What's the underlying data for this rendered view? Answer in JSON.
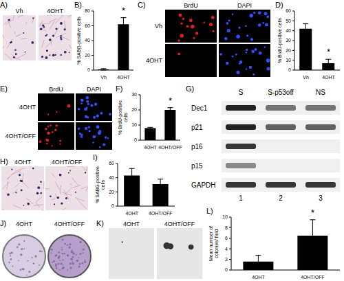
{
  "panels": [
    {
      "title": "A)",
      "captions": [
        "Vh",
        "4OHT"
      ]
    },
    {
      "title": "C)",
      "columns": [
        "BrdU",
        "DAPI"
      ],
      "rows": [
        "Vh",
        "4OHT"
      ]
    },
    {
      "title": "E)",
      "columns": [
        "BrdU",
        "DAPI"
      ],
      "rows": [
        "4OHT",
        "4OHT/OFF"
      ]
    },
    {
      "title": "G)",
      "lanes": [
        "S",
        "S-p53off",
        "NS"
      ],
      "bands": [
        "Dec1",
        "p21",
        "p16",
        "p15",
        "GAPDH"
      ],
      "lane_numbers": [
        1,
        2,
        3
      ]
    },
    {
      "title": "H)",
      "captions": [
        "4OHT",
        "4OHT/OFF"
      ]
    },
    {
      "title": "J)",
      "captions": [
        "4OHT",
        "4OHT/OFF"
      ]
    },
    {
      "title": "K)",
      "captions": [
        "4OHT",
        "4OHT/OFF"
      ]
    }
  ],
  "chart_data": [
    {
      "title": "B)",
      "type": "bar",
      "categories": [
        "Vh",
        "4OHT"
      ],
      "values": [
        1,
        62
      ],
      "errors": [
        1,
        9
      ],
      "ylabel": "% SABG-positive cells",
      "ylim": [
        0,
        80
      ],
      "yticks": [
        0,
        20,
        40,
        60,
        80
      ],
      "color": "#000000",
      "annotations": [
        {
          "category": "4OHT",
          "text": "*"
        }
      ]
    },
    {
      "title": "D)",
      "type": "bar",
      "categories": [
        "Vh",
        "4OHT"
      ],
      "values": [
        42,
        7
      ],
      "errors": [
        5,
        4
      ],
      "ylabel": "% BrdU-positive cells",
      "ylim": [
        0,
        60
      ],
      "yticks": [
        0,
        10,
        20,
        30,
        40,
        50,
        60
      ],
      "color": "#000000",
      "annotations": [
        {
          "category": "4OHT",
          "text": "*"
        }
      ]
    },
    {
      "title": "F)",
      "type": "bar",
      "categories": [
        "4OHT",
        "4OHT/OFF"
      ],
      "values": [
        8,
        20
      ],
      "errors": [
        0.5,
        1.5
      ],
      "ylabel": "% BrdU-positive cells",
      "ylim": [
        0,
        30
      ],
      "yticks": [
        0,
        10,
        20,
        30
      ],
      "color": "#000000",
      "annotations": [
        {
          "category": "4OHT/OFF",
          "text": "*"
        }
      ]
    },
    {
      "title": "I)",
      "type": "bar",
      "categories": [
        "4OHT",
        "4OHT/OFF"
      ],
      "values": [
        43,
        31
      ],
      "errors": [
        10,
        7
      ],
      "ylabel": "% SABG-positive cells",
      "ylim": [
        0,
        60
      ],
      "yticks": [
        0,
        20,
        40,
        60
      ],
      "color": "#000000",
      "annotations": []
    },
    {
      "title": "L)",
      "type": "bar",
      "categories": [
        "4OHT",
        "4OHT/OFF"
      ],
      "values": [
        1.6,
        6.5
      ],
      "errors": [
        1.2,
        3
      ],
      "ylabel": "Mean number of colonies/ field",
      "ylim": [
        0,
        10
      ],
      "yticks": [
        0,
        2,
        4,
        6,
        8,
        10
      ],
      "color": "#000000",
      "annotations": [
        {
          "category": "4OHT/OFF",
          "text": "*"
        }
      ]
    }
  ]
}
